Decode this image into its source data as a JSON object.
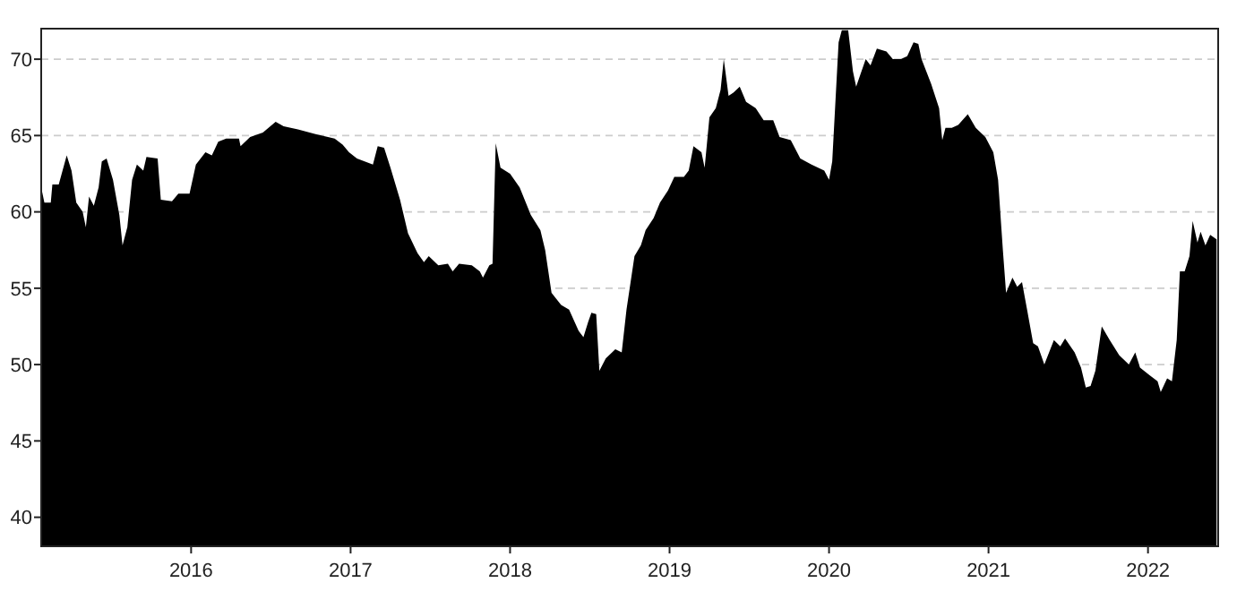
{
  "chart_data": {
    "type": "area",
    "x": [
      2015.06,
      2015.08,
      2015.12,
      2015.13,
      2015.17,
      2015.22,
      2015.25,
      2015.28,
      2015.32,
      2015.34,
      2015.36,
      2015.39,
      2015.42,
      2015.44,
      2015.47,
      2015.51,
      2015.55,
      2015.57,
      2015.6,
      2015.63,
      2015.66,
      2015.7,
      2015.72,
      2015.79,
      2015.81,
      2015.88,
      2015.92,
      2015.99,
      2016.03,
      2016.09,
      2016.13,
      2016.17,
      2016.22,
      2016.3,
      2016.31,
      2016.37,
      2016.45,
      2016.53,
      2016.58,
      2016.67,
      2016.78,
      2016.9,
      2016.95,
      2016.99,
      2017.04,
      2017.14,
      2017.17,
      2017.21,
      2017.25,
      2017.31,
      2017.36,
      2017.42,
      2017.46,
      2017.49,
      2017.55,
      2017.61,
      2017.64,
      2017.68,
      2017.76,
      2017.81,
      2017.83,
      2017.87,
      2017.89,
      2017.91,
      2017.94,
      2018.0,
      2018.06,
      2018.13,
      2018.19,
      2018.22,
      2018.26,
      2018.32,
      2018.37,
      2018.43,
      2018.46,
      2018.49,
      2018.51,
      2018.54,
      2018.56,
      2018.6,
      2018.66,
      2018.7,
      2018.73,
      2018.78,
      2018.82,
      2018.85,
      2018.9,
      2018.94,
      2018.99,
      2019.03,
      2019.09,
      2019.12,
      2019.15,
      2019.2,
      2019.22,
      2019.25,
      2019.29,
      2019.32,
      2019.34,
      2019.37,
      2019.4,
      2019.44,
      2019.48,
      2019.54,
      2019.59,
      2019.65,
      2019.69,
      2019.76,
      2019.82,
      2019.89,
      2019.97,
      2020.0,
      2020.02,
      2020.06,
      2020.08,
      2020.12,
      2020.15,
      2020.17,
      2020.23,
      2020.26,
      2020.3,
      2020.36,
      2020.4,
      2020.45,
      2020.49,
      2020.53,
      2020.56,
      2020.58,
      2020.64,
      2020.69,
      2020.71,
      2020.73,
      2020.77,
      2020.81,
      2020.87,
      2020.92,
      2020.98,
      2021.03,
      2021.06,
      2021.09,
      2021.11,
      2021.15,
      2021.18,
      2021.21,
      2021.24,
      2021.28,
      2021.31,
      2021.35,
      2021.41,
      2021.45,
      2021.48,
      2021.54,
      2021.58,
      2021.61,
      2021.64,
      2021.67,
      2021.71,
      2021.76,
      2021.82,
      2021.88,
      2021.92,
      2021.95,
      2022.01,
      2022.06,
      2022.08,
      2022.12,
      2022.15,
      2022.18,
      2022.2,
      2022.23,
      2022.26,
      2022.28,
      2022.31,
      2022.33,
      2022.36,
      2022.39,
      2022.43
    ],
    "values": [
      61.6,
      60.6,
      60.6,
      61.8,
      61.8,
      63.7,
      62.7,
      60.6,
      60.0,
      59.0,
      61.0,
      60.4,
      61.6,
      63.3,
      63.5,
      62.1,
      59.8,
      57.8,
      59.0,
      62.1,
      63.1,
      62.7,
      63.6,
      63.5,
      60.8,
      60.7,
      61.2,
      61.2,
      63.1,
      63.9,
      63.7,
      64.6,
      64.8,
      64.8,
      64.3,
      64.9,
      65.2,
      65.9,
      65.6,
      65.4,
      65.1,
      64.8,
      64.4,
      63.9,
      63.5,
      63.1,
      64.3,
      64.2,
      62.9,
      60.8,
      58.6,
      57.3,
      56.7,
      57.1,
      56.5,
      56.6,
      56.1,
      56.6,
      56.5,
      56.1,
      55.7,
      56.5,
      56.6,
      64.5,
      62.9,
      62.5,
      61.6,
      59.8,
      58.8,
      57.5,
      54.7,
      53.9,
      53.6,
      52.2,
      51.8,
      52.8,
      53.4,
      53.3,
      49.6,
      50.4,
      51.0,
      50.8,
      53.6,
      57.1,
      57.8,
      58.8,
      59.6,
      60.6,
      61.4,
      62.3,
      62.3,
      62.7,
      64.3,
      63.9,
      62.9,
      66.2,
      66.8,
      68.0,
      70.0,
      67.6,
      67.8,
      68.2,
      67.2,
      66.8,
      66.0,
      66.0,
      64.9,
      64.7,
      63.5,
      63.1,
      62.7,
      62.1,
      63.3,
      71.1,
      71.9,
      71.9,
      69.2,
      68.2,
      70.0,
      69.6,
      70.7,
      70.5,
      70.0,
      70.0,
      70.2,
      71.1,
      71.0,
      70.0,
      68.4,
      66.8,
      64.7,
      65.5,
      65.5,
      65.7,
      66.4,
      65.5,
      64.9,
      63.9,
      62.1,
      57.5,
      54.7,
      55.7,
      55.1,
      55.4,
      53.7,
      51.4,
      51.2,
      50.0,
      51.6,
      51.2,
      51.7,
      50.8,
      49.8,
      48.5,
      48.6,
      49.6,
      52.5,
      51.6,
      50.6,
      50.0,
      50.8,
      49.8,
      49.3,
      48.9,
      48.2,
      49.1,
      48.9,
      51.6,
      56.1,
      56.1,
      57.1,
      59.4,
      58.0,
      58.7,
      57.8,
      58.5,
      58.2
    ],
    "color": "#000000",
    "xlim": [
      2015.06,
      2022.44
    ],
    "xticks": [
      2016,
      2017,
      2018,
      2019,
      2020,
      2021,
      2022
    ],
    "ylim": [
      38.1,
      72
    ],
    "yticks": [
      40,
      45,
      50,
      55,
      60,
      65,
      70
    ],
    "grid": "y"
  }
}
